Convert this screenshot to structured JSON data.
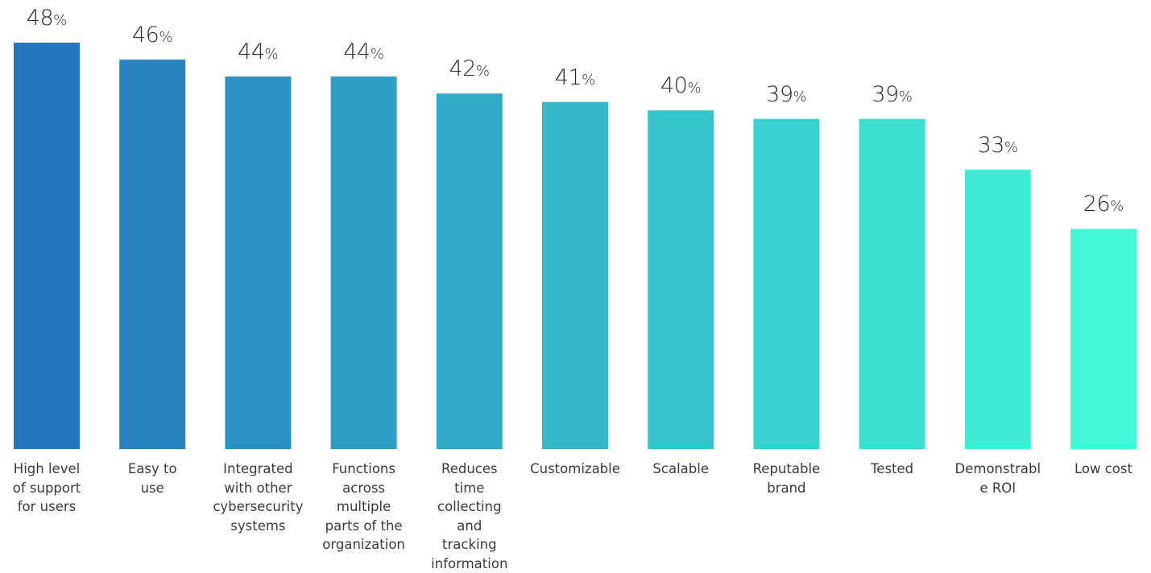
{
  "chart_data": {
    "type": "bar",
    "title": "",
    "xlabel": "",
    "ylabel": "",
    "ylim": [
      0,
      48
    ],
    "grid": false,
    "legend": "none",
    "value_suffix": "%",
    "categories": [
      "High level of support for users",
      "Easy to use",
      "Integrated with other cybersecurity systems",
      "Functions across multiple parts of the organization",
      "Reduces time collecting and tracking information",
      "Customizable",
      "Scalable",
      "Reputable brand",
      "Tested",
      "Demonstrable ROI",
      "Low cost"
    ],
    "category_lines": [
      [
        "High level",
        "of support",
        "for users"
      ],
      [
        "Easy to",
        "use"
      ],
      [
        "Integrated",
        "with other",
        "cybersecurity",
        "systems"
      ],
      [
        "Functions",
        "across",
        "multiple",
        "parts of the",
        "organization"
      ],
      [
        "Reduces",
        "time",
        "collecting",
        "and",
        "tracking",
        "information"
      ],
      [
        "Customizable"
      ],
      [
        "Scalable"
      ],
      [
        "Reputable",
        "brand"
      ],
      [
        "Tested"
      ],
      [
        "Demonstrabl",
        "e ROI"
      ],
      [
        "Low cost"
      ]
    ],
    "values": [
      48,
      46,
      44,
      44,
      42,
      41,
      40,
      39,
      39,
      33,
      26
    ],
    "colors": {
      "gradient_start": "#2577bd",
      "gradient_end": "#42f8d6"
    }
  }
}
